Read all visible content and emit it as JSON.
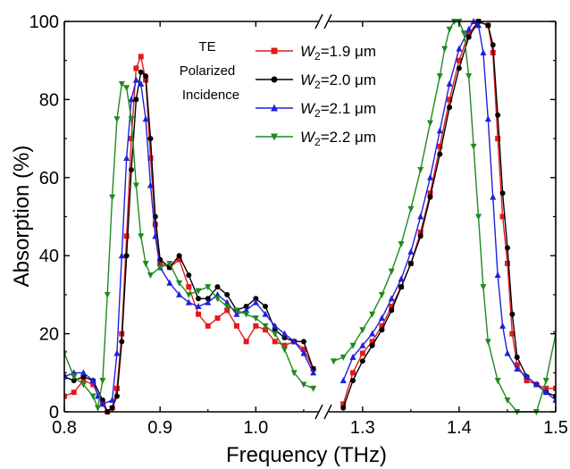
{
  "chart_data": {
    "type": "line",
    "xlabel": "Frequency (THz)",
    "ylabel": "Absorption (%)",
    "ylim": [
      0,
      100
    ],
    "grid": false,
    "legend_placement": "top-center",
    "yticks": [
      "0",
      "20",
      "40",
      "60",
      "80",
      "100"
    ],
    "xticks_left": [
      "0.8",
      "0.9",
      "1.0"
    ],
    "xticks_right": [
      "1.3",
      "1.4",
      "1.5"
    ],
    "annotation": [
      "TE",
      "Polarized",
      "Incidence"
    ],
    "axis_break": true,
    "series": [
      {
        "name": "W2=1.9 μm",
        "legend": {
          "italic": "W",
          "sub": "2",
          "rest": "=1.9 μm"
        },
        "color": "#e31a1c",
        "marker": "square",
        "left": [
          [
            0.8,
            4
          ],
          [
            0.81,
            5
          ],
          [
            0.82,
            8
          ],
          [
            0.83,
            7
          ],
          [
            0.84,
            2
          ],
          [
            0.845,
            0
          ],
          [
            0.85,
            1
          ],
          [
            0.855,
            6
          ],
          [
            0.86,
            20
          ],
          [
            0.865,
            45
          ],
          [
            0.87,
            70
          ],
          [
            0.875,
            88
          ],
          [
            0.88,
            91
          ],
          [
            0.885,
            85
          ],
          [
            0.89,
            65
          ],
          [
            0.895,
            48
          ],
          [
            0.9,
            38
          ],
          [
            0.91,
            37
          ],
          [
            0.92,
            39
          ],
          [
            0.93,
            32
          ],
          [
            0.94,
            25
          ],
          [
            0.95,
            22
          ],
          [
            0.96,
            24
          ],
          [
            0.97,
            26
          ],
          [
            0.98,
            22
          ],
          [
            0.99,
            18
          ],
          [
            1.0,
            22
          ],
          [
            1.01,
            21
          ],
          [
            1.02,
            18
          ],
          [
            1.03,
            17
          ],
          [
            1.04,
            18
          ],
          [
            1.05,
            16
          ],
          [
            1.06,
            11
          ]
        ],
        "right": [
          [
            1.28,
            2
          ],
          [
            1.29,
            10
          ],
          [
            1.3,
            15
          ],
          [
            1.31,
            18
          ],
          [
            1.32,
            22
          ],
          [
            1.33,
            27
          ],
          [
            1.34,
            32
          ],
          [
            1.35,
            38
          ],
          [
            1.36,
            46
          ],
          [
            1.37,
            56
          ],
          [
            1.38,
            68
          ],
          [
            1.39,
            80
          ],
          [
            1.4,
            90
          ],
          [
            1.41,
            97
          ],
          [
            1.42,
            100
          ],
          [
            1.43,
            99
          ],
          [
            1.435,
            92
          ],
          [
            1.44,
            70
          ],
          [
            1.445,
            50
          ],
          [
            1.45,
            38
          ],
          [
            1.455,
            20
          ],
          [
            1.46,
            12
          ],
          [
            1.47,
            8
          ],
          [
            1.48,
            7
          ],
          [
            1.49,
            6
          ],
          [
            1.5,
            6
          ]
        ]
      },
      {
        "name": "W2=2.0 μm",
        "legend": {
          "italic": "W",
          "sub": "2",
          "rest": "=2.0 μm"
        },
        "color": "#000000",
        "marker": "circle",
        "left": [
          [
            0.8,
            9
          ],
          [
            0.81,
            8
          ],
          [
            0.82,
            9
          ],
          [
            0.83,
            8
          ],
          [
            0.84,
            3
          ],
          [
            0.845,
            0
          ],
          [
            0.85,
            1
          ],
          [
            0.855,
            4
          ],
          [
            0.86,
            18
          ],
          [
            0.865,
            40
          ],
          [
            0.87,
            62
          ],
          [
            0.875,
            80
          ],
          [
            0.88,
            87
          ],
          [
            0.885,
            86
          ],
          [
            0.89,
            70
          ],
          [
            0.895,
            50
          ],
          [
            0.9,
            39
          ],
          [
            0.91,
            37
          ],
          [
            0.92,
            40
          ],
          [
            0.93,
            35
          ],
          [
            0.94,
            29
          ],
          [
            0.95,
            29
          ],
          [
            0.96,
            32
          ],
          [
            0.97,
            30
          ],
          [
            0.98,
            26
          ],
          [
            0.99,
            27
          ],
          [
            1.0,
            29
          ],
          [
            1.01,
            27
          ],
          [
            1.02,
            21
          ],
          [
            1.03,
            19
          ],
          [
            1.04,
            18
          ],
          [
            1.05,
            18
          ],
          [
            1.06,
            11
          ]
        ],
        "right": [
          [
            1.28,
            1
          ],
          [
            1.29,
            8
          ],
          [
            1.3,
            13
          ],
          [
            1.31,
            17
          ],
          [
            1.32,
            21
          ],
          [
            1.33,
            26
          ],
          [
            1.34,
            32
          ],
          [
            1.35,
            38
          ],
          [
            1.36,
            45
          ],
          [
            1.37,
            55
          ],
          [
            1.38,
            66
          ],
          [
            1.39,
            78
          ],
          [
            1.4,
            88
          ],
          [
            1.41,
            96
          ],
          [
            1.42,
            100
          ],
          [
            1.43,
            99
          ],
          [
            1.435,
            94
          ],
          [
            1.44,
            76
          ],
          [
            1.445,
            56
          ],
          [
            1.45,
            42
          ],
          [
            1.455,
            25
          ],
          [
            1.46,
            14
          ],
          [
            1.47,
            9
          ],
          [
            1.48,
            7
          ],
          [
            1.49,
            5
          ],
          [
            1.5,
            4
          ]
        ]
      },
      {
        "name": "W2=2.1 μm",
        "legend": {
          "italic": "W",
          "sub": "2",
          "rest": "=2.1 μm"
        },
        "color": "#1f1fe0",
        "marker": "triangle-up",
        "left": [
          [
            0.8,
            9
          ],
          [
            0.81,
            10
          ],
          [
            0.82,
            10
          ],
          [
            0.83,
            8
          ],
          [
            0.835,
            4
          ],
          [
            0.84,
            2
          ],
          [
            0.85,
            3
          ],
          [
            0.855,
            15
          ],
          [
            0.86,
            40
          ],
          [
            0.865,
            65
          ],
          [
            0.87,
            80
          ],
          [
            0.875,
            85
          ],
          [
            0.88,
            84
          ],
          [
            0.885,
            75
          ],
          [
            0.89,
            58
          ],
          [
            0.895,
            45
          ],
          [
            0.9,
            37
          ],
          [
            0.91,
            33
          ],
          [
            0.92,
            30
          ],
          [
            0.93,
            28
          ],
          [
            0.94,
            27
          ],
          [
            0.95,
            28
          ],
          [
            0.96,
            30
          ],
          [
            0.97,
            28
          ],
          [
            0.98,
            25
          ],
          [
            0.99,
            26
          ],
          [
            1.0,
            28
          ],
          [
            1.01,
            25
          ],
          [
            1.02,
            22
          ],
          [
            1.03,
            20
          ],
          [
            1.04,
            18
          ],
          [
            1.05,
            15
          ],
          [
            1.06,
            10
          ]
        ],
        "right": [
          [
            1.28,
            8
          ],
          [
            1.29,
            14
          ],
          [
            1.3,
            17
          ],
          [
            1.31,
            20
          ],
          [
            1.32,
            24
          ],
          [
            1.33,
            29
          ],
          [
            1.34,
            34
          ],
          [
            1.35,
            41
          ],
          [
            1.36,
            50
          ],
          [
            1.37,
            60
          ],
          [
            1.38,
            72
          ],
          [
            1.39,
            84
          ],
          [
            1.4,
            93
          ],
          [
            1.41,
            98
          ],
          [
            1.415,
            100
          ],
          [
            1.42,
            99
          ],
          [
            1.425,
            92
          ],
          [
            1.43,
            75
          ],
          [
            1.435,
            55
          ],
          [
            1.44,
            35
          ],
          [
            1.445,
            22
          ],
          [
            1.45,
            15
          ],
          [
            1.46,
            11
          ],
          [
            1.47,
            9
          ],
          [
            1.48,
            7
          ],
          [
            1.49,
            5
          ],
          [
            1.5,
            3
          ]
        ]
      },
      {
        "name": "W2=2.2 μm",
        "legend": {
          "italic": "W",
          "sub": "2",
          "rest": "=2.2 μm"
        },
        "color": "#1f8a1f",
        "marker": "triangle-down",
        "left": [
          [
            0.8,
            15
          ],
          [
            0.81,
            9
          ],
          [
            0.82,
            7
          ],
          [
            0.83,
            4
          ],
          [
            0.835,
            1
          ],
          [
            0.84,
            8
          ],
          [
            0.845,
            30
          ],
          [
            0.85,
            55
          ],
          [
            0.855,
            75
          ],
          [
            0.86,
            84
          ],
          [
            0.865,
            83
          ],
          [
            0.87,
            75
          ],
          [
            0.875,
            58
          ],
          [
            0.88,
            45
          ],
          [
            0.885,
            38
          ],
          [
            0.89,
            35
          ],
          [
            0.9,
            37
          ],
          [
            0.91,
            38
          ],
          [
            0.92,
            33
          ],
          [
            0.93,
            30
          ],
          [
            0.94,
            31
          ],
          [
            0.95,
            32
          ],
          [
            0.96,
            29
          ],
          [
            0.97,
            27
          ],
          [
            0.98,
            26
          ],
          [
            0.99,
            25
          ],
          [
            1.0,
            24
          ],
          [
            1.01,
            22
          ],
          [
            1.02,
            20
          ],
          [
            1.03,
            16
          ],
          [
            1.04,
            10
          ],
          [
            1.05,
            7
          ],
          [
            1.06,
            6
          ]
        ],
        "right": [
          [
            1.27,
            13
          ],
          [
            1.28,
            14
          ],
          [
            1.29,
            17
          ],
          [
            1.3,
            21
          ],
          [
            1.31,
            25
          ],
          [
            1.32,
            30
          ],
          [
            1.33,
            36
          ],
          [
            1.34,
            43
          ],
          [
            1.35,
            52
          ],
          [
            1.36,
            62
          ],
          [
            1.37,
            74
          ],
          [
            1.38,
            86
          ],
          [
            1.385,
            93
          ],
          [
            1.39,
            98
          ],
          [
            1.395,
            100
          ],
          [
            1.4,
            100
          ],
          [
            1.405,
            97
          ],
          [
            1.41,
            86
          ],
          [
            1.415,
            68
          ],
          [
            1.42,
            50
          ],
          [
            1.425,
            32
          ],
          [
            1.43,
            18
          ],
          [
            1.44,
            8
          ],
          [
            1.45,
            3
          ],
          [
            1.46,
            0
          ],
          [
            1.48,
            0
          ],
          [
            1.49,
            8
          ],
          [
            1.5,
            20
          ]
        ]
      }
    ]
  }
}
